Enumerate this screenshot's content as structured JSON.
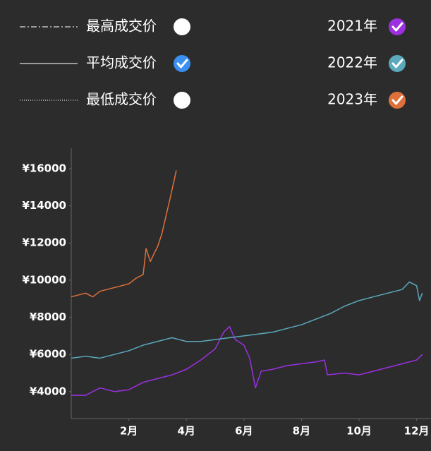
{
  "chart_data": {
    "type": "line",
    "price_lines": [
      {
        "label": "最高成交价",
        "selected": false
      },
      {
        "label": "平均成交价",
        "selected": true
      },
      {
        "label": "最低成交价",
        "selected": false
      }
    ],
    "series": [
      {
        "name": "2021年",
        "color": "#9b30e0",
        "x": [
          0,
          0.5,
          1,
          1.5,
          2,
          2.5,
          3,
          3.5,
          4,
          4.5,
          5,
          5.3,
          5.5,
          5.7,
          6,
          6.2,
          6.4,
          6.6,
          7,
          7.5,
          8,
          8.5,
          8.8,
          8.9,
          9.5,
          10,
          10.5,
          11,
          11.5,
          12,
          12.2
        ],
        "values": [
          3800,
          3800,
          4200,
          4000,
          4100,
          4500,
          4700,
          4900,
          5200,
          5700,
          6300,
          7200,
          7500,
          6800,
          6500,
          5800,
          4200,
          5100,
          5200,
          5400,
          5500,
          5600,
          5700,
          4900,
          5000,
          4900,
          5100,
          5300,
          5500,
          5700,
          6000
        ]
      },
      {
        "name": "2022年",
        "color": "#5aa9bd",
        "x": [
          0,
          0.5,
          1,
          1.5,
          2,
          2.5,
          3,
          3.5,
          4,
          4.5,
          5,
          5.5,
          6,
          6.5,
          7,
          7.5,
          8,
          8.5,
          9,
          9.5,
          10,
          10.5,
          11,
          11.5,
          11.75,
          12,
          12.1,
          12.2
        ],
        "values": [
          5800,
          5900,
          5800,
          6000,
          6200,
          6500,
          6700,
          6900,
          6700,
          6700,
          6800,
          6900,
          7000,
          7100,
          7200,
          7400,
          7600,
          7900,
          8200,
          8600,
          8900,
          9100,
          9300,
          9500,
          9900,
          9700,
          8900,
          9300
        ]
      },
      {
        "name": "2023年",
        "color": "#e0703a",
        "x": [
          0,
          0.25,
          0.5,
          0.75,
          1,
          1.25,
          1.5,
          1.75,
          2,
          2.25,
          2.5,
          2.6,
          2.75,
          2.9,
          3,
          3.15,
          3.3,
          3.45,
          3.55,
          3.65
        ],
        "values": [
          9100,
          9200,
          9300,
          9100,
          9400,
          9500,
          9600,
          9700,
          9800,
          10100,
          10300,
          11700,
          11000,
          11500,
          11800,
          12500,
          13500,
          14500,
          15200,
          15900
        ]
      }
    ],
    "xlim": [
      0,
      12.5
    ],
    "xticks": [
      {
        "value": 2,
        "label": "2月"
      },
      {
        "value": 4,
        "label": "4月"
      },
      {
        "value": 6,
        "label": "6月"
      },
      {
        "value": 8,
        "label": "8月"
      },
      {
        "value": 10,
        "label": "10月"
      },
      {
        "value": 12,
        "label": "12月"
      }
    ],
    "ylim": [
      2550,
      17100
    ],
    "yticks": [
      {
        "value": 4000,
        "label": "¥4000"
      },
      {
        "value": 6000,
        "label": "¥6000"
      },
      {
        "value": 8000,
        "label": "¥8000"
      },
      {
        "value": 10000,
        "label": "¥10000"
      },
      {
        "value": 12000,
        "label": "¥12000"
      },
      {
        "value": 14000,
        "label": "¥14000"
      },
      {
        "value": 16000,
        "label": "¥16000"
      }
    ]
  }
}
